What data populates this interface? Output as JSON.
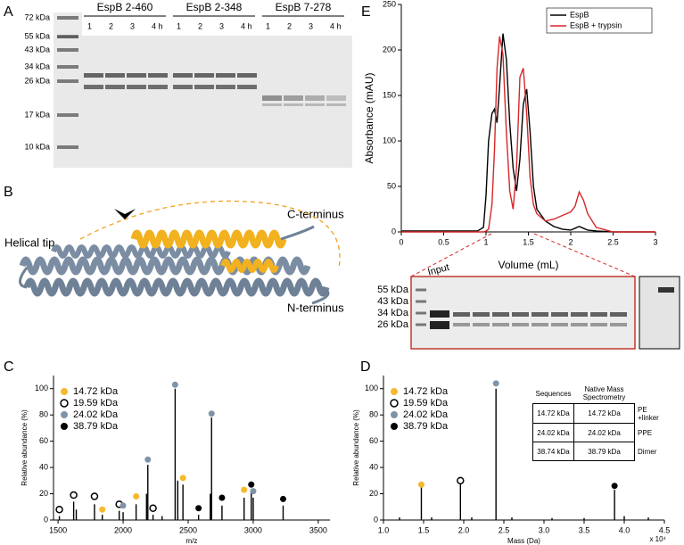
{
  "figure": {
    "A": {
      "label": "A",
      "groups": [
        {
          "name": "EspB 2-460",
          "lanes": [
            "1",
            "2",
            "3",
            "4 h"
          ]
        },
        {
          "name": "EspB 2-348",
          "lanes": [
            "1",
            "2",
            "3",
            "4 h"
          ]
        },
        {
          "name": "EspB 7-278",
          "lanes": [
            "1",
            "2",
            "3",
            "4 h"
          ]
        }
      ],
      "markers": [
        "72 kDa",
        "55 kDa",
        "43 kDa",
        "34 kDa",
        "26 kDa",
        "17 kDa",
        "10 kDa"
      ]
    },
    "B": {
      "label": "B",
      "helical_tip": "Helical tip",
      "c_terminus": "C-terminus",
      "n_terminus": "N-terminus"
    },
    "E_gel": {
      "input": "Input",
      "markers": [
        "55 kDa",
        "43 kDa",
        "34 kDa",
        "26 kDa"
      ]
    },
    "D_table": {
      "header": [
        "Sequences",
        "Native Mass Spectrometry"
      ],
      "rows": [
        [
          "14.72 kDa",
          "14.72 kDa",
          "PE +linker"
        ],
        [
          "24.02 kDa",
          "24.02 kDa",
          "PPE"
        ],
        [
          "38.74 kDa",
          "38.79 kDa",
          "Dimer"
        ]
      ]
    }
  },
  "chart_data": [
    {
      "panel": "E",
      "type": "line",
      "xlabel": "Volume (mL)",
      "ylabel": "Absorbance (mAU)",
      "x": [
        0,
        0.5,
        0.9,
        0.97,
        1.0,
        1.03,
        1.07,
        1.1,
        1.13,
        1.16,
        1.2,
        1.24,
        1.28,
        1.32,
        1.36,
        1.4,
        1.44,
        1.48,
        1.52,
        1.56,
        1.6,
        1.7,
        1.8,
        1.9,
        2.0,
        2.05,
        2.1,
        2.15,
        2.2,
        2.3,
        2.5,
        3.0
      ],
      "series": [
        {
          "name": "EspB",
          "color": "#000000",
          "values": [
            1,
            1,
            1,
            5,
            40,
            100,
            130,
            135,
            120,
            160,
            218,
            190,
            120,
            70,
            45,
            80,
            140,
            157,
            110,
            50,
            25,
            12,
            6,
            3,
            2,
            4,
            6,
            4,
            2,
            1,
            0,
            0
          ]
        },
        {
          "name": "EspB + trypsin",
          "color": "#d62728",
          "values": [
            0,
            0,
            0,
            0,
            1,
            3,
            30,
            90,
            180,
            215,
            195,
            110,
            45,
            25,
            70,
            170,
            180,
            130,
            60,
            30,
            20,
            12,
            14,
            18,
            22,
            28,
            44,
            35,
            20,
            5,
            0,
            0
          ]
        }
      ],
      "xlim": [
        0,
        3
      ],
      "ylim": [
        0,
        250
      ],
      "xticks": [
        0,
        0.5,
        1,
        1.5,
        2,
        2.5,
        3
      ],
      "yticks": [
        0,
        50,
        100,
        150,
        200,
        250
      ],
      "legend": "upper right"
    },
    {
      "panel": "C",
      "type": "spectrum",
      "xlabel": "m/z",
      "ylabel": "Relative abundance (%)",
      "x": [
        1510,
        1620,
        1640,
        1780,
        1840,
        1970,
        2000,
        2100,
        2180,
        2190,
        2230,
        2300,
        2400,
        2420,
        2460,
        2580,
        2670,
        2680,
        2760,
        2930,
        2985,
        3000,
        3230
      ],
      "values": [
        3,
        14,
        8,
        12,
        4,
        7,
        6,
        12,
        20,
        42,
        4,
        3,
        100,
        30,
        27,
        4,
        20,
        78,
        11,
        17,
        22,
        17,
        11
      ],
      "color": "#000000",
      "series": [
        {
          "name": "14.72 kDa",
          "color": "#f5b82e",
          "marker": "filled",
          "x": [
            1840,
            2100,
            2460,
            2930
          ],
          "values": [
            8,
            18,
            32,
            23
          ]
        },
        {
          "name": "19.59 kDa",
          "color": "#000000",
          "marker": "open",
          "x": [
            1510,
            1620,
            1780,
            1970,
            2230
          ],
          "values": [
            8,
            19,
            18,
            12,
            9
          ]
        },
        {
          "name": "24.02 kDa",
          "color": "#7f93a8",
          "marker": "filled",
          "x": [
            2000,
            2190,
            2400,
            2680,
            3000
          ],
          "values": [
            11,
            46,
            103,
            81,
            22
          ]
        },
        {
          "name": "38.79 kDa",
          "color": "#000000",
          "marker": "filled",
          "x": [
            2580,
            2760,
            2985,
            3230
          ],
          "values": [
            9,
            17,
            27,
            16
          ]
        }
      ],
      "xlim": [
        1465,
        3590
      ],
      "ylim": [
        0,
        110
      ],
      "xticks": [
        1500,
        2000,
        2500,
        3000,
        3500
      ],
      "yticks": [
        0,
        20,
        40,
        60,
        80,
        100
      ],
      "legend": "upper left"
    },
    {
      "panel": "D",
      "type": "spectrum",
      "xlabel": "Mass (Da)",
      "ylabel": "Relative abundance (%)",
      "x_multiplier": "x 10⁴",
      "x": [
        1.2,
        1.472,
        1.6,
        1.959,
        2.1,
        2.402,
        2.6,
        3.1,
        3.5,
        3.879,
        4.0,
        4.3
      ],
      "values": [
        2,
        25,
        2,
        28,
        2,
        100,
        2,
        1.5,
        1.5,
        23,
        3,
        2
      ],
      "color": "#000000",
      "series": [
        {
          "name": "14.72 kDa",
          "color": "#f5b82e",
          "marker": "filled",
          "x": [
            1.472
          ],
          "values": [
            27
          ]
        },
        {
          "name": "19.59 kDa",
          "color": "#000000",
          "marker": "open",
          "x": [
            1.959
          ],
          "values": [
            30
          ]
        },
        {
          "name": "24.02 kDa",
          "color": "#7f93a8",
          "marker": "filled",
          "x": [
            2.402
          ],
          "values": [
            104
          ]
        },
        {
          "name": "38.79 kDa",
          "color": "#000000",
          "marker": "filled",
          "x": [
            3.879
          ],
          "values": [
            26
          ]
        }
      ],
      "xlim": [
        1.0,
        4.5
      ],
      "ylim": [
        0,
        110
      ],
      "xticks": [
        {
          "value": 1,
          "label": "1.0"
        },
        1.5,
        {
          "value": 2,
          "label": "2.0"
        },
        2.5,
        {
          "value": 3,
          "label": "3.0"
        },
        3.5,
        {
          "value": 4,
          "label": "4.0"
        },
        4.5
      ],
      "yticks": [
        0,
        20,
        40,
        60,
        80,
        100
      ],
      "legend": "upper left"
    }
  ]
}
